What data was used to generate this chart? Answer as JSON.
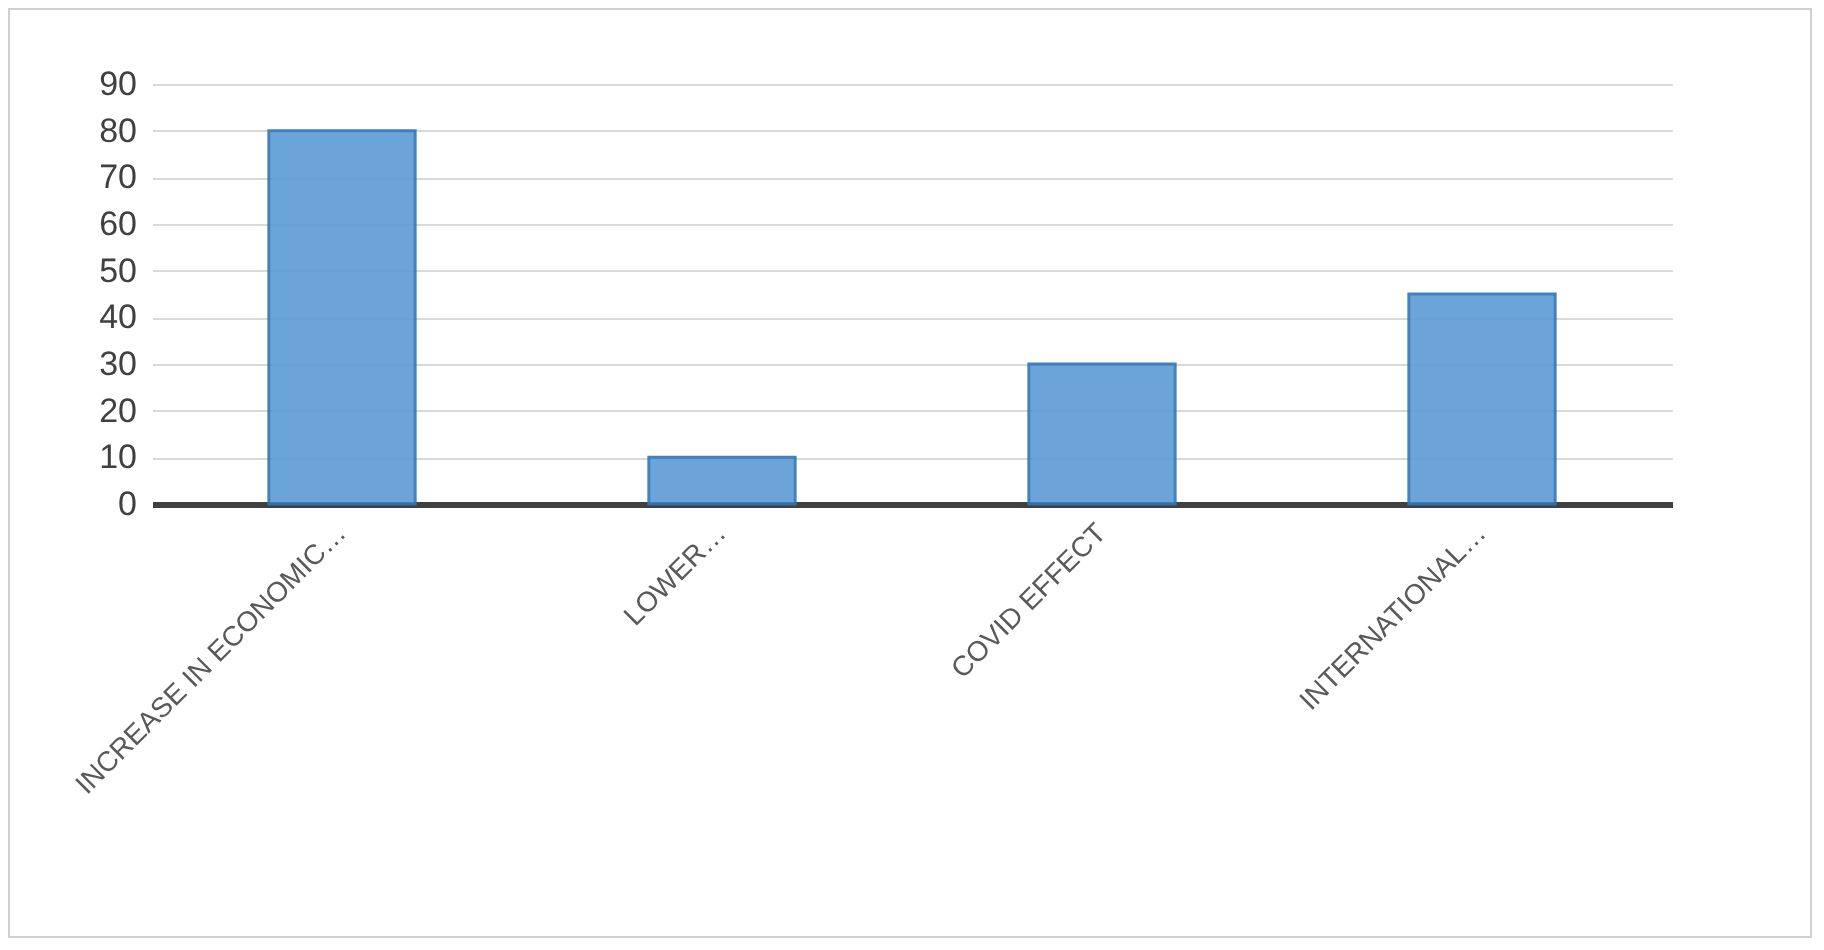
{
  "chart_data": {
    "type": "bar",
    "categories": [
      "INCREASE IN ECONOMIC…",
      "LOWER…",
      "COVID EFFECT",
      "INTERNATIONAL…"
    ],
    "values": [
      80,
      10,
      30,
      45
    ],
    "color": "#5b9bd5",
    "ylim": [
      0,
      90
    ],
    "yticks": [
      0,
      10,
      20,
      30,
      40,
      50,
      60,
      70,
      80,
      90
    ],
    "grid": "y"
  }
}
